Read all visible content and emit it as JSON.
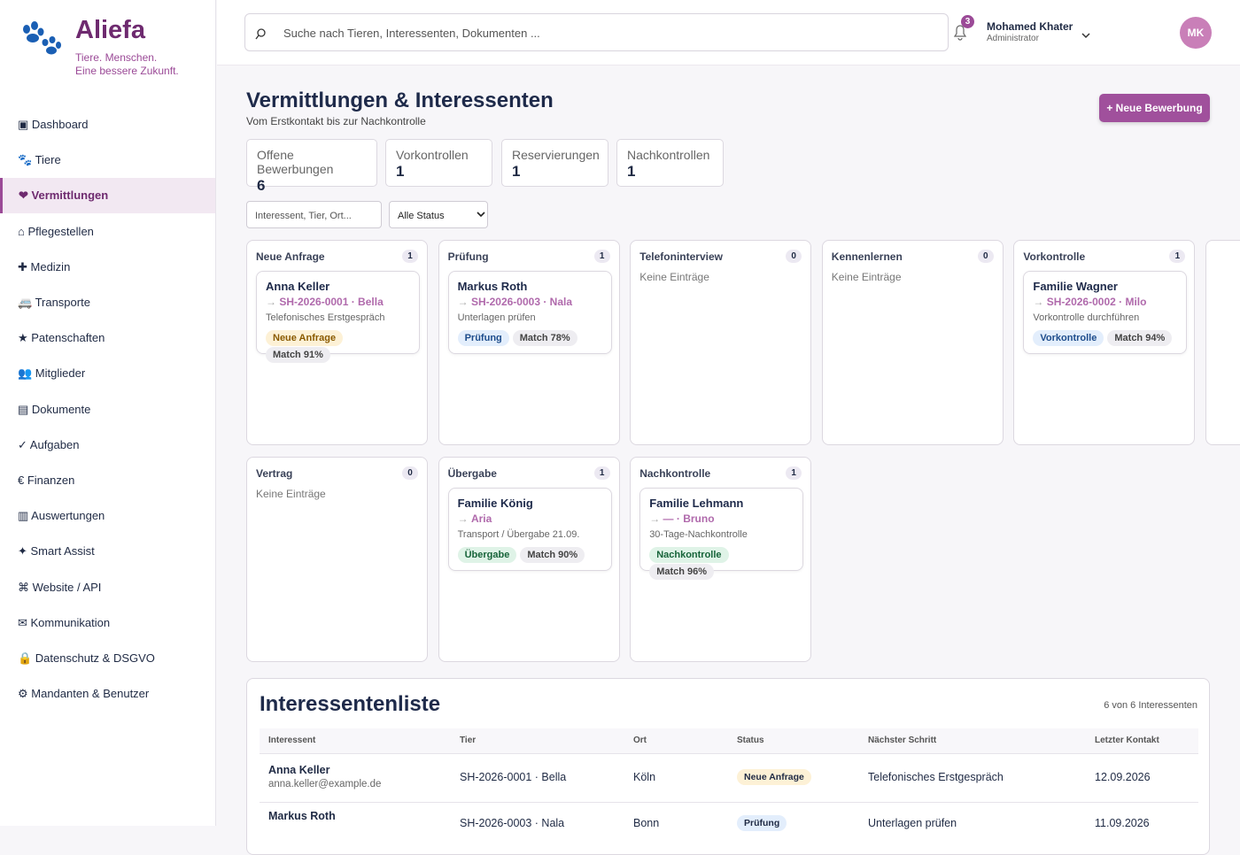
{
  "brand": {
    "name": "Aliefa",
    "tagline": [
      "Tiere. Menschen.",
      "Eine bessere Zukunft."
    ]
  },
  "nav": [
    {
      "label": "▣ Dashboard"
    },
    {
      "label": "🐾 Tiere"
    },
    {
      "label": "❤ Vermittlungen",
      "active": true
    },
    {
      "label": "⌂ Pflegestellen"
    },
    {
      "label": "✚ Medizin"
    },
    {
      "label": "🚐 Transporte"
    },
    {
      "label": "★ Patenschaften"
    },
    {
      "label": "👥 Mitglieder"
    },
    {
      "label": "▤ Dokumente"
    },
    {
      "label": "✓ Aufgaben"
    },
    {
      "label": "€ Finanzen"
    },
    {
      "label": "▥ Auswertungen"
    },
    {
      "label": "✦ Smart Assist"
    },
    {
      "label": "⌘ Website / API"
    },
    {
      "label": "✉ Kommunikation"
    },
    {
      "label": "🔒 Datenschutz & DSGVO"
    },
    {
      "label": "⚙ Mandanten & Benutzer"
    }
  ],
  "header": {
    "search_placeholder": "Suche nach Tieren, Interessenten, Dokumenten ...",
    "notifications": 3,
    "user_name": "Mohamed Khater",
    "user_role": "Administrator",
    "initials": "MK"
  },
  "page": {
    "title": "Vermittlungen & Interessenten",
    "subtitle": "Vom Erstkontakt bis zur Nachkontrolle",
    "new_button": "+ Neue Bewerbung"
  },
  "stats": [
    {
      "label": "Offene Bewerbungen",
      "value": 6
    },
    {
      "label": "Vorkontrollen",
      "value": 1
    },
    {
      "label": "Reservierungen",
      "value": 1
    },
    {
      "label": "Nachkontrollen",
      "value": 1
    }
  ],
  "filters": {
    "search_placeholder": "Interessent, Tier, Ort...",
    "status_select": "Alle Status"
  },
  "board": [
    {
      "title": "Neue Anfrage",
      "count": 1,
      "cards": [
        {
          "name": "Anna Keller",
          "ref": "SH-2026-0001 · Bella",
          "note": "Telefonisches Erstgespräch",
          "tag": "Neue Anfrage",
          "tone": "amber",
          "match": "Match 91%"
        }
      ]
    },
    {
      "title": "Prüfung",
      "count": 1,
      "cards": [
        {
          "name": "Markus Roth",
          "ref": "SH-2026-0003 · Nala",
          "note": "Unterlagen prüfen",
          "tag": "Prüfung",
          "tone": "blue",
          "match": "Match 78%"
        }
      ]
    },
    {
      "title": "Telefoninterview",
      "count": 0,
      "empty": "Keine Einträge"
    },
    {
      "title": "Kennenlernen",
      "count": 0,
      "empty": "Keine Einträge"
    },
    {
      "title": "Vorkontrolle",
      "count": 1,
      "cards": [
        {
          "name": "Familie Wagner",
          "ref": "SH-2026-0002 · Milo",
          "note": "Vorkontrolle durchführen",
          "tag": "Vorkontrolle",
          "tone": "blue",
          "match": "Match 94%"
        }
      ]
    },
    {
      "title": "Vertrag",
      "count": 0,
      "empty": "Keine Einträge"
    },
    {
      "title": "Übergabe",
      "count": 1,
      "cards": [
        {
          "name": "Familie König",
          "ref": "Aria",
          "note": "Transport / Übergabe 21.09.",
          "tag": "Übergabe",
          "tone": "green",
          "match": "Match 90%"
        }
      ]
    },
    {
      "title": "Nachkontrolle",
      "count": 1,
      "cards": [
        {
          "name": "Familie Lehmann",
          "ref": "— · Bruno",
          "note": "30-Tage-Nachkontrolle",
          "tag": "Nachkontrolle",
          "tone": "green",
          "match": "Match 96%"
        }
      ]
    }
  ],
  "table": {
    "title": "Interessentenliste",
    "summary": "6 von 6 Interessenten",
    "headers": [
      "Interessent",
      "Tier",
      "Ort",
      "Status",
      "Nächster Schritt",
      "Letzter Kontakt"
    ],
    "rows": [
      {
        "name": "Anna Keller",
        "email": "anna.keller@example.de",
        "animal": "SH-2026-0001 · Bella",
        "place": "Köln",
        "status": "Neue Anfrage",
        "tone": "amber",
        "next": "Telefonisches Erstgespräch",
        "last": "12.09.2026"
      },
      {
        "name": "Markus Roth",
        "animal": "SH-2026-0003 · Nala",
        "place": "Bonn",
        "status": "Prüfung",
        "tone": "blue",
        "next": "Unterlagen prüfen",
        "last": "11.09.2026"
      }
    ]
  }
}
